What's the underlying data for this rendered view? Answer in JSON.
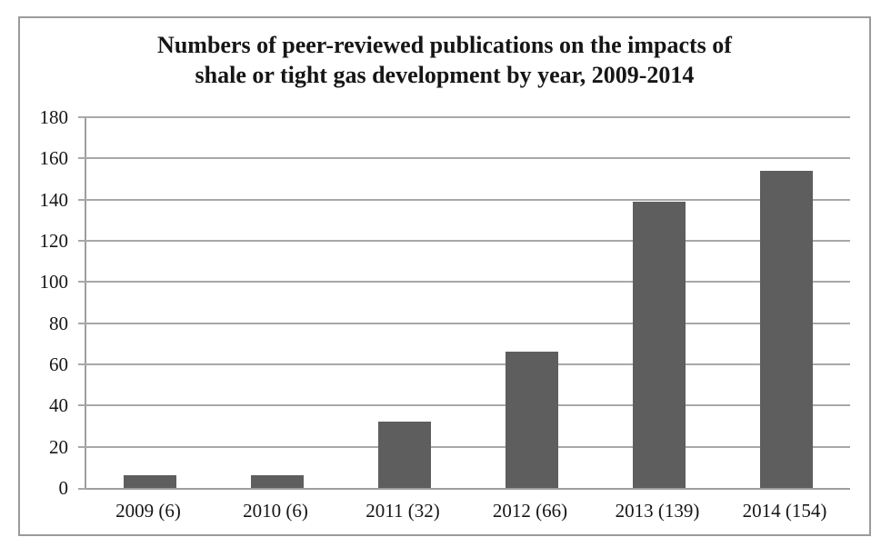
{
  "chart_data": {
    "type": "bar",
    "title": "Numbers of peer-reviewed publications on the impacts of shale or tight gas development by year, 2009-2014",
    "title_line1": "Numbers of peer-reviewed publications on the impacts of",
    "title_line2": "shale or tight gas development by year, 2009-2014",
    "categories": [
      "2009 (6)",
      "2010 (6)",
      "2011 (32)",
      "2012 (66)",
      "2013 (139)",
      "2014 (154)"
    ],
    "values": [
      6,
      6,
      32,
      66,
      139,
      154
    ],
    "xlabel": "",
    "ylabel": "",
    "ylim": [
      0,
      180
    ],
    "yticks": [
      0,
      20,
      40,
      60,
      80,
      100,
      120,
      140,
      160,
      180
    ],
    "grid": true,
    "legend": false,
    "bar_color": "#5e5e5e",
    "grid_color": "#a8a8a8",
    "axis_color": "#9e9e9e",
    "frame_border_color": "#9b9b9b",
    "text_color": "#161616"
  }
}
